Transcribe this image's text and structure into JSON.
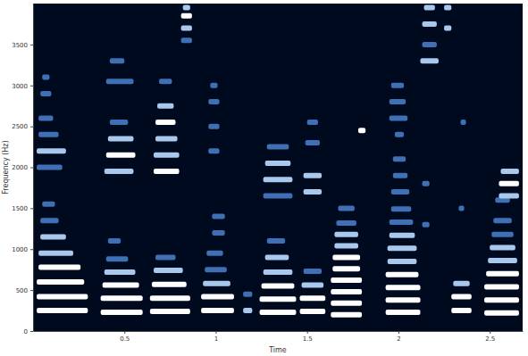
{
  "chart_data": {
    "type": "spectrogram",
    "xlabel": "Time",
    "ylabel": "Frequency (Hz)",
    "xlim": [
      0,
      2.68
    ],
    "ylim": [
      0,
      4000
    ],
    "xticks": [
      0.5,
      1,
      1.5,
      2,
      2.5
    ],
    "yticks": [
      0,
      500,
      1000,
      1500,
      2000,
      2500,
      3000,
      3500
    ],
    "streaks": [
      {
        "t0": 0.02,
        "t1": 0.3,
        "f": 250,
        "level": 3
      },
      {
        "t0": 0.02,
        "t1": 0.3,
        "f": 420,
        "level": 3
      },
      {
        "t0": 0.02,
        "t1": 0.28,
        "f": 600,
        "level": 3
      },
      {
        "t0": 0.03,
        "t1": 0.26,
        "f": 780,
        "level": 3
      },
      {
        "t0": 0.03,
        "t1": 0.22,
        "f": 950,
        "level": 2
      },
      {
        "t0": 0.04,
        "t1": 0.18,
        "f": 1150,
        "level": 2
      },
      {
        "t0": 0.04,
        "t1": 0.14,
        "f": 1350,
        "level": 1
      },
      {
        "t0": 0.05,
        "t1": 0.12,
        "f": 1550,
        "level": 1
      },
      {
        "t0": 0.02,
        "t1": 0.16,
        "f": 2000,
        "level": 1
      },
      {
        "t0": 0.02,
        "t1": 0.18,
        "f": 2200,
        "level": 2
      },
      {
        "t0": 0.03,
        "t1": 0.14,
        "f": 2400,
        "level": 1
      },
      {
        "t0": 0.03,
        "t1": 0.11,
        "f": 2600,
        "level": 1
      },
      {
        "t0": 0.04,
        "t1": 0.1,
        "f": 2900,
        "level": 1
      },
      {
        "t0": 0.05,
        "t1": 0.09,
        "f": 3100,
        "level": 1
      },
      {
        "t0": 0.37,
        "t1": 0.6,
        "f": 230,
        "level": 3
      },
      {
        "t0": 0.37,
        "t1": 0.6,
        "f": 400,
        "level": 3
      },
      {
        "t0": 0.38,
        "t1": 0.58,
        "f": 560,
        "level": 3
      },
      {
        "t0": 0.39,
        "t1": 0.56,
        "f": 720,
        "level": 2
      },
      {
        "t0": 0.4,
        "t1": 0.52,
        "f": 880,
        "level": 1
      },
      {
        "t0": 0.41,
        "t1": 0.48,
        "f": 1100,
        "level": 1
      },
      {
        "t0": 0.39,
        "t1": 0.55,
        "f": 1950,
        "level": 2
      },
      {
        "t0": 0.4,
        "t1": 0.56,
        "f": 2150,
        "level": 3
      },
      {
        "t0": 0.41,
        "t1": 0.55,
        "f": 2350,
        "level": 2
      },
      {
        "t0": 0.42,
        "t1": 0.52,
        "f": 2550,
        "level": 1
      },
      {
        "t0": 0.4,
        "t1": 0.55,
        "f": 3050,
        "level": 1
      },
      {
        "t0": 0.42,
        "t1": 0.5,
        "f": 3300,
        "level": 1
      },
      {
        "t0": 0.64,
        "t1": 0.86,
        "f": 240,
        "level": 3
      },
      {
        "t0": 0.64,
        "t1": 0.86,
        "f": 400,
        "level": 3
      },
      {
        "t0": 0.65,
        "t1": 0.84,
        "f": 570,
        "level": 3
      },
      {
        "t0": 0.66,
        "t1": 0.82,
        "f": 740,
        "level": 2
      },
      {
        "t0": 0.67,
        "t1": 0.78,
        "f": 900,
        "level": 1
      },
      {
        "t0": 0.66,
        "t1": 0.8,
        "f": 1950,
        "level": 3
      },
      {
        "t0": 0.66,
        "t1": 0.8,
        "f": 2150,
        "level": 2
      },
      {
        "t0": 0.67,
        "t1": 0.79,
        "f": 2350,
        "level": 2
      },
      {
        "t0": 0.67,
        "t1": 0.78,
        "f": 2550,
        "level": 3
      },
      {
        "t0": 0.68,
        "t1": 0.77,
        "f": 2750,
        "level": 2
      },
      {
        "t0": 0.69,
        "t1": 0.76,
        "f": 3050,
        "level": 1
      },
      {
        "t0": 0.81,
        "t1": 0.87,
        "f": 3550,
        "level": 1
      },
      {
        "t0": 0.81,
        "t1": 0.87,
        "f": 3700,
        "level": 2
      },
      {
        "t0": 0.81,
        "t1": 0.87,
        "f": 3850,
        "level": 3
      },
      {
        "t0": 0.82,
        "t1": 0.86,
        "f": 3950,
        "level": 2
      },
      {
        "t0": 0.92,
        "t1": 1.1,
        "f": 250,
        "level": 3
      },
      {
        "t0": 0.92,
        "t1": 1.1,
        "f": 420,
        "level": 3
      },
      {
        "t0": 0.93,
        "t1": 1.08,
        "f": 580,
        "level": 2
      },
      {
        "t0": 0.94,
        "t1": 1.06,
        "f": 750,
        "level": 1
      },
      {
        "t0": 0.95,
        "t1": 1.04,
        "f": 950,
        "level": 1
      },
      {
        "t0": 0.98,
        "t1": 1.05,
        "f": 1200,
        "level": 1
      },
      {
        "t0": 0.98,
        "t1": 1.05,
        "f": 1400,
        "level": 1
      },
      {
        "t0": 0.96,
        "t1": 1.02,
        "f": 2200,
        "level": 1
      },
      {
        "t0": 0.96,
        "t1": 1.02,
        "f": 2500,
        "level": 1
      },
      {
        "t0": 0.96,
        "t1": 1.02,
        "f": 2800,
        "level": 1
      },
      {
        "t0": 0.97,
        "t1": 1.01,
        "f": 3000,
        "level": 1
      },
      {
        "t0": 1.15,
        "t1": 1.2,
        "f": 250,
        "level": 2
      },
      {
        "t0": 1.15,
        "t1": 1.2,
        "f": 450,
        "level": 1
      },
      {
        "t0": 1.24,
        "t1": 1.44,
        "f": 230,
        "level": 3
      },
      {
        "t0": 1.24,
        "t1": 1.44,
        "f": 390,
        "level": 3
      },
      {
        "t0": 1.25,
        "t1": 1.43,
        "f": 550,
        "level": 3
      },
      {
        "t0": 1.26,
        "t1": 1.42,
        "f": 720,
        "level": 2
      },
      {
        "t0": 1.27,
        "t1": 1.4,
        "f": 900,
        "level": 2
      },
      {
        "t0": 1.28,
        "t1": 1.38,
        "f": 1100,
        "level": 1
      },
      {
        "t0": 1.26,
        "t1": 1.42,
        "f": 1650,
        "level": 1
      },
      {
        "t0": 1.26,
        "t1": 1.42,
        "f": 1850,
        "level": 2
      },
      {
        "t0": 1.27,
        "t1": 1.41,
        "f": 2050,
        "level": 2
      },
      {
        "t0": 1.28,
        "t1": 1.4,
        "f": 2250,
        "level": 1
      },
      {
        "t0": 1.46,
        "t1": 1.6,
        "f": 240,
        "level": 3
      },
      {
        "t0": 1.46,
        "t1": 1.6,
        "f": 400,
        "level": 3
      },
      {
        "t0": 1.47,
        "t1": 1.59,
        "f": 560,
        "level": 2
      },
      {
        "t0": 1.48,
        "t1": 1.58,
        "f": 730,
        "level": 1
      },
      {
        "t0": 1.48,
        "t1": 1.58,
        "f": 1700,
        "level": 2
      },
      {
        "t0": 1.48,
        "t1": 1.58,
        "f": 1900,
        "level": 2
      },
      {
        "t0": 1.49,
        "t1": 1.57,
        "f": 2300,
        "level": 1
      },
      {
        "t0": 1.5,
        "t1": 1.56,
        "f": 2550,
        "level": 1
      },
      {
        "t0": 1.63,
        "t1": 1.8,
        "f": 200,
        "level": 3
      },
      {
        "t0": 1.63,
        "t1": 1.8,
        "f": 340,
        "level": 3
      },
      {
        "t0": 1.63,
        "t1": 1.8,
        "f": 480,
        "level": 3
      },
      {
        "t0": 1.63,
        "t1": 1.8,
        "f": 620,
        "level": 3
      },
      {
        "t0": 1.64,
        "t1": 1.79,
        "f": 760,
        "level": 3
      },
      {
        "t0": 1.64,
        "t1": 1.79,
        "f": 900,
        "level": 3
      },
      {
        "t0": 1.65,
        "t1": 1.78,
        "f": 1040,
        "level": 2
      },
      {
        "t0": 1.65,
        "t1": 1.78,
        "f": 1180,
        "level": 2
      },
      {
        "t0": 1.66,
        "t1": 1.77,
        "f": 1320,
        "level": 1
      },
      {
        "t0": 1.67,
        "t1": 1.76,
        "f": 1500,
        "level": 1
      },
      {
        "t0": 1.78,
        "t1": 1.82,
        "f": 2450,
        "level": 3
      },
      {
        "t0": 1.93,
        "t1": 2.12,
        "f": 230,
        "level": 3
      },
      {
        "t0": 1.93,
        "t1": 2.12,
        "f": 380,
        "level": 3
      },
      {
        "t0": 1.93,
        "t1": 2.12,
        "f": 530,
        "level": 3
      },
      {
        "t0": 1.93,
        "t1": 2.11,
        "f": 690,
        "level": 3
      },
      {
        "t0": 1.94,
        "t1": 2.1,
        "f": 850,
        "level": 2
      },
      {
        "t0": 1.94,
        "t1": 2.1,
        "f": 1010,
        "level": 2
      },
      {
        "t0": 1.95,
        "t1": 2.09,
        "f": 1170,
        "level": 2
      },
      {
        "t0": 1.95,
        "t1": 2.08,
        "f": 1330,
        "level": 1
      },
      {
        "t0": 1.96,
        "t1": 2.07,
        "f": 1490,
        "level": 1
      },
      {
        "t0": 1.96,
        "t1": 2.06,
        "f": 1700,
        "level": 1
      },
      {
        "t0": 1.97,
        "t1": 2.05,
        "f": 1900,
        "level": 1
      },
      {
        "t0": 1.97,
        "t1": 2.04,
        "f": 2100,
        "level": 1
      },
      {
        "t0": 1.98,
        "t1": 2.03,
        "f": 2400,
        "level": 1
      },
      {
        "t0": 1.95,
        "t1": 2.05,
        "f": 2600,
        "level": 1
      },
      {
        "t0": 1.95,
        "t1": 2.04,
        "f": 2800,
        "level": 1
      },
      {
        "t0": 1.96,
        "t1": 2.03,
        "f": 3000,
        "level": 1
      },
      {
        "t0": 2.13,
        "t1": 2.17,
        "f": 1300,
        "level": 1
      },
      {
        "t0": 2.13,
        "t1": 2.17,
        "f": 1800,
        "level": 1
      },
      {
        "t0": 2.12,
        "t1": 2.22,
        "f": 3300,
        "level": 2
      },
      {
        "t0": 2.13,
        "t1": 2.21,
        "f": 3500,
        "level": 1
      },
      {
        "t0": 2.13,
        "t1": 2.21,
        "f": 3750,
        "level": 2
      },
      {
        "t0": 2.14,
        "t1": 2.2,
        "f": 3950,
        "level": 2
      },
      {
        "t0": 2.25,
        "t1": 2.29,
        "f": 3700,
        "level": 2
      },
      {
        "t0": 2.25,
        "t1": 2.29,
        "f": 3950,
        "level": 2
      },
      {
        "t0": 2.29,
        "t1": 2.4,
        "f": 250,
        "level": 3
      },
      {
        "t0": 2.29,
        "t1": 2.4,
        "f": 420,
        "level": 3
      },
      {
        "t0": 2.3,
        "t1": 2.39,
        "f": 580,
        "level": 2
      },
      {
        "t0": 2.33,
        "t1": 2.36,
        "f": 1500,
        "level": 1
      },
      {
        "t0": 2.34,
        "t1": 2.37,
        "f": 2550,
        "level": 1
      },
      {
        "t0": 2.47,
        "t1": 2.66,
        "f": 220,
        "level": 3
      },
      {
        "t0": 2.47,
        "t1": 2.66,
        "f": 380,
        "level": 3
      },
      {
        "t0": 2.47,
        "t1": 2.66,
        "f": 540,
        "level": 3
      },
      {
        "t0": 2.48,
        "t1": 2.66,
        "f": 700,
        "level": 3
      },
      {
        "t0": 2.49,
        "t1": 2.65,
        "f": 860,
        "level": 2
      },
      {
        "t0": 2.5,
        "t1": 2.64,
        "f": 1020,
        "level": 2
      },
      {
        "t0": 2.51,
        "t1": 2.63,
        "f": 1180,
        "level": 1
      },
      {
        "t0": 2.52,
        "t1": 2.62,
        "f": 1350,
        "level": 1
      },
      {
        "t0": 2.53,
        "t1": 2.61,
        "f": 1600,
        "level": 1
      },
      {
        "t0": 2.55,
        "t1": 2.66,
        "f": 1650,
        "level": 2
      },
      {
        "t0": 2.55,
        "t1": 2.66,
        "f": 1800,
        "level": 3
      },
      {
        "t0": 2.56,
        "t1": 2.66,
        "f": 1950,
        "level": 2
      }
    ]
  }
}
